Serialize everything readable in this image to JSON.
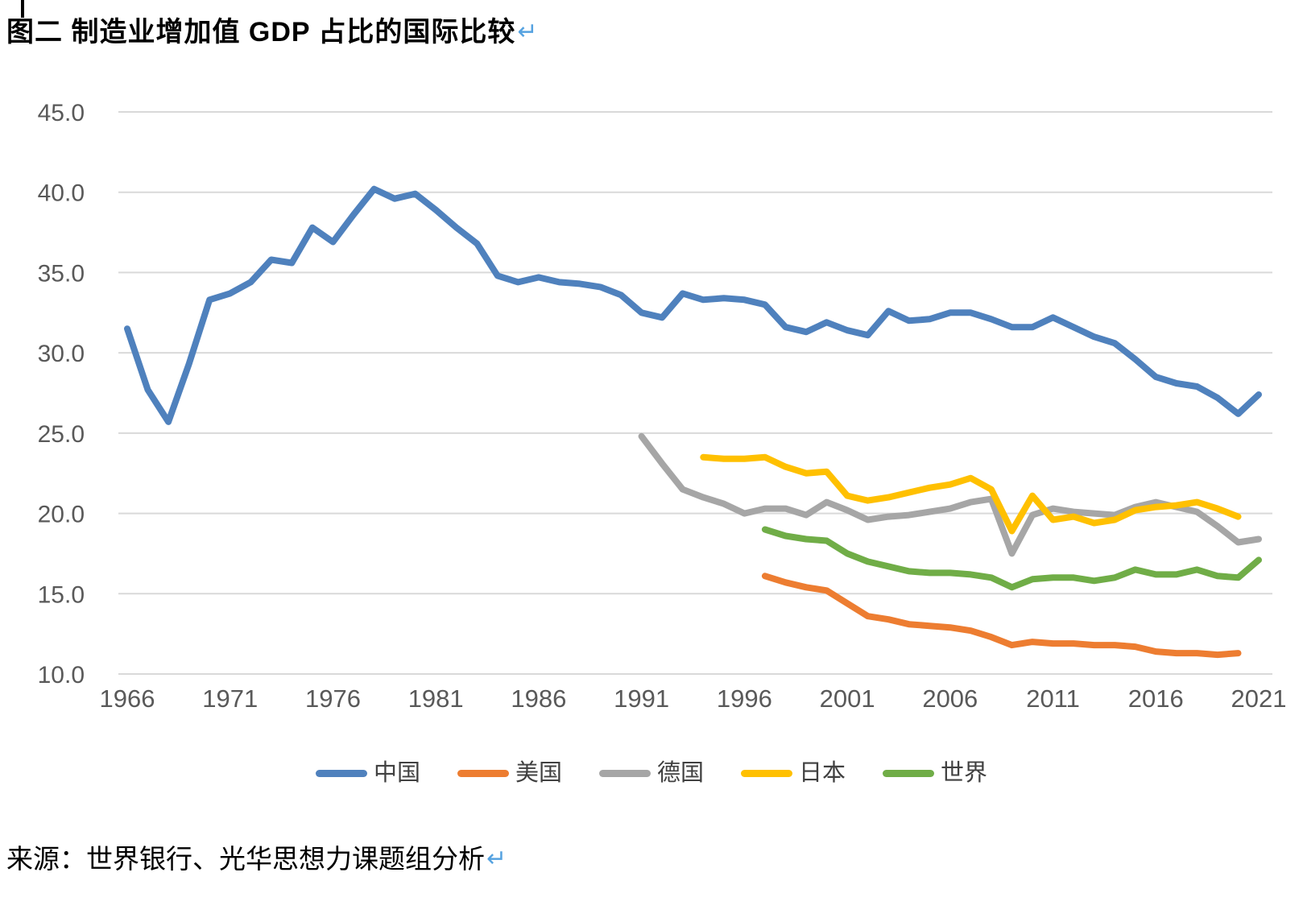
{
  "page": {
    "title": "图二 制造业增加值 GDP 占比的国际比较",
    "return_mark": "↵",
    "source": "来源：世界银行、光华思想力课题组分析",
    "accent_color": "#55A2E0"
  },
  "chart_data": {
    "type": "line",
    "title": "制造业增加值GDP占比的国际比较",
    "xlabel": "",
    "ylabel": "",
    "xlim": [
      1966,
      2021
    ],
    "ylim": [
      10.0,
      45.0
    ],
    "x_ticks": [
      1966,
      1971,
      1976,
      1981,
      1986,
      1991,
      1996,
      2001,
      2006,
      2011,
      2016,
      2021
    ],
    "y_ticks": [
      "45.0",
      "40.0",
      "35.0",
      "30.0",
      "25.0",
      "20.0",
      "15.0",
      "10.0"
    ],
    "grid": "horizontal",
    "grid_color": "#D9D9D9",
    "tick_label_color": "#595959",
    "legend_position": "bottom",
    "series": [
      {
        "name": "中国",
        "color": "#4F81BD",
        "start_year": 1966,
        "values": [
          31.5,
          27.7,
          25.7,
          29.3,
          33.3,
          33.7,
          34.4,
          35.8,
          35.6,
          37.8,
          36.9,
          38.6,
          40.2,
          39.6,
          39.9,
          38.9,
          37.8,
          36.8,
          34.8,
          34.4,
          34.7,
          34.4,
          34.3,
          34.1,
          33.6,
          32.5,
          32.2,
          33.7,
          33.3,
          33.4,
          33.3,
          33.0,
          31.6,
          31.3,
          31.9,
          31.4,
          31.1,
          32.6,
          32.0,
          32.1,
          32.5,
          32.5,
          32.1,
          31.6,
          31.6,
          32.2,
          31.6,
          31.0,
          30.6,
          29.6,
          28.5,
          28.1,
          27.9,
          27.2,
          26.2,
          27.4
        ]
      },
      {
        "name": "美国",
        "color": "#ED7D31",
        "start_year": 1997,
        "values": [
          16.1,
          15.7,
          15.4,
          15.2,
          14.4,
          13.6,
          13.4,
          13.1,
          13.0,
          12.9,
          12.7,
          12.3,
          11.8,
          12.0,
          11.9,
          11.9,
          11.8,
          11.8,
          11.7,
          11.4,
          11.3,
          11.3,
          11.2,
          11.3
        ]
      },
      {
        "name": "德国",
        "color": "#A6A6A6",
        "start_year": 1991,
        "values": [
          24.8,
          23.1,
          21.5,
          21.0,
          20.6,
          20.0,
          20.3,
          20.3,
          19.9,
          20.7,
          20.2,
          19.6,
          19.8,
          19.9,
          20.1,
          20.3,
          20.7,
          20.9,
          17.5,
          19.9,
          20.3,
          20.1,
          20.0,
          19.9,
          20.4,
          20.7,
          20.4,
          20.1,
          19.2,
          18.2,
          18.4
        ]
      },
      {
        "name": "日本",
        "color": "#FFC000",
        "start_year": 1994,
        "values": [
          23.5,
          23.4,
          23.4,
          23.5,
          22.9,
          22.5,
          22.6,
          21.1,
          20.8,
          21.0,
          21.3,
          21.6,
          21.8,
          22.2,
          21.5,
          18.9,
          21.1,
          19.6,
          19.8,
          19.4,
          19.6,
          20.2,
          20.4,
          20.5,
          20.7,
          20.3,
          19.8
        ]
      },
      {
        "name": "世界",
        "color": "#70AD47",
        "start_year": 1997,
        "values": [
          19.0,
          18.6,
          18.4,
          18.3,
          17.5,
          17.0,
          16.7,
          16.4,
          16.3,
          16.3,
          16.2,
          16.0,
          15.4,
          15.9,
          16.0,
          16.0,
          15.8,
          16.0,
          16.5,
          16.2,
          16.2,
          16.5,
          16.1,
          16.0,
          17.1
        ]
      }
    ]
  }
}
